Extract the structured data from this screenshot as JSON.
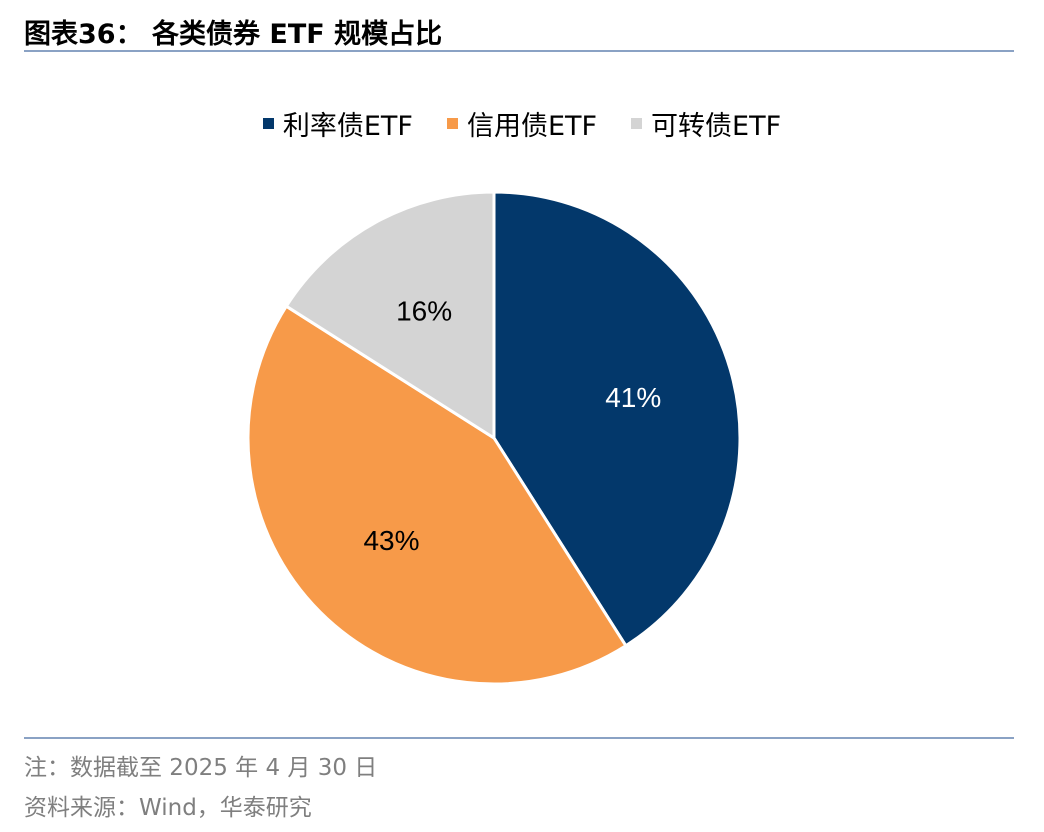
{
  "header": {
    "title": "图表36： 各类债券 ETF 规模占比"
  },
  "chart_data": {
    "type": "pie",
    "start_angle_deg": 0,
    "direction": "clockwise",
    "slices": [
      {
        "name": "利率债ETF",
        "value": 41,
        "label": "41%",
        "color": "#03386b",
        "label_color": "#ffffff"
      },
      {
        "name": "信用债ETF",
        "value": 43,
        "label": "43%",
        "color": "#f79a49",
        "label_color": "#000000"
      },
      {
        "name": "可转债ETF",
        "value": 16,
        "label": "16%",
        "color": "#d4d4d4",
        "label_color": "#000000"
      }
    ],
    "legend_position": "top"
  },
  "footer": {
    "note": "注：数据截至 2025 年 4 月 30 日",
    "source": "资料来源：Wind，华泰研究"
  }
}
